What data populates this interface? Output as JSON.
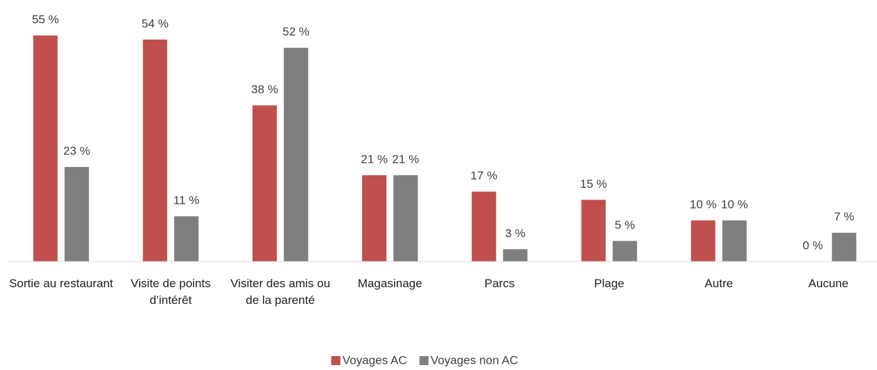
{
  "chart_data": {
    "type": "bar",
    "categories": [
      "Sortie au restaurant",
      "Visite de points d’intérêt",
      "Visiter des amis ou de la parenté",
      "Magasinage",
      "Parcs",
      "Plage",
      "Autre",
      "Aucune"
    ],
    "series": [
      {
        "name": "Voyages AC",
        "color": "#c0504d",
        "values": [
          55,
          54,
          38,
          21,
          17,
          15,
          10,
          0
        ],
        "value_labels": [
          "55 %",
          "54 %",
          "38 %",
          "21 %",
          "17 %",
          "15 %",
          "10 %",
          "0 %"
        ]
      },
      {
        "name": "Voyages non AC",
        "color": "#7f7f7f",
        "values": [
          23,
          11,
          52,
          21,
          3,
          5,
          10,
          7
        ],
        "value_labels": [
          "23 %",
          "11 %",
          "52 %",
          "21 %",
          "3 %",
          "5 %",
          "10 %",
          "7 %"
        ]
      }
    ],
    "ylim": [
      0,
      55
    ],
    "legend": "bottom"
  }
}
